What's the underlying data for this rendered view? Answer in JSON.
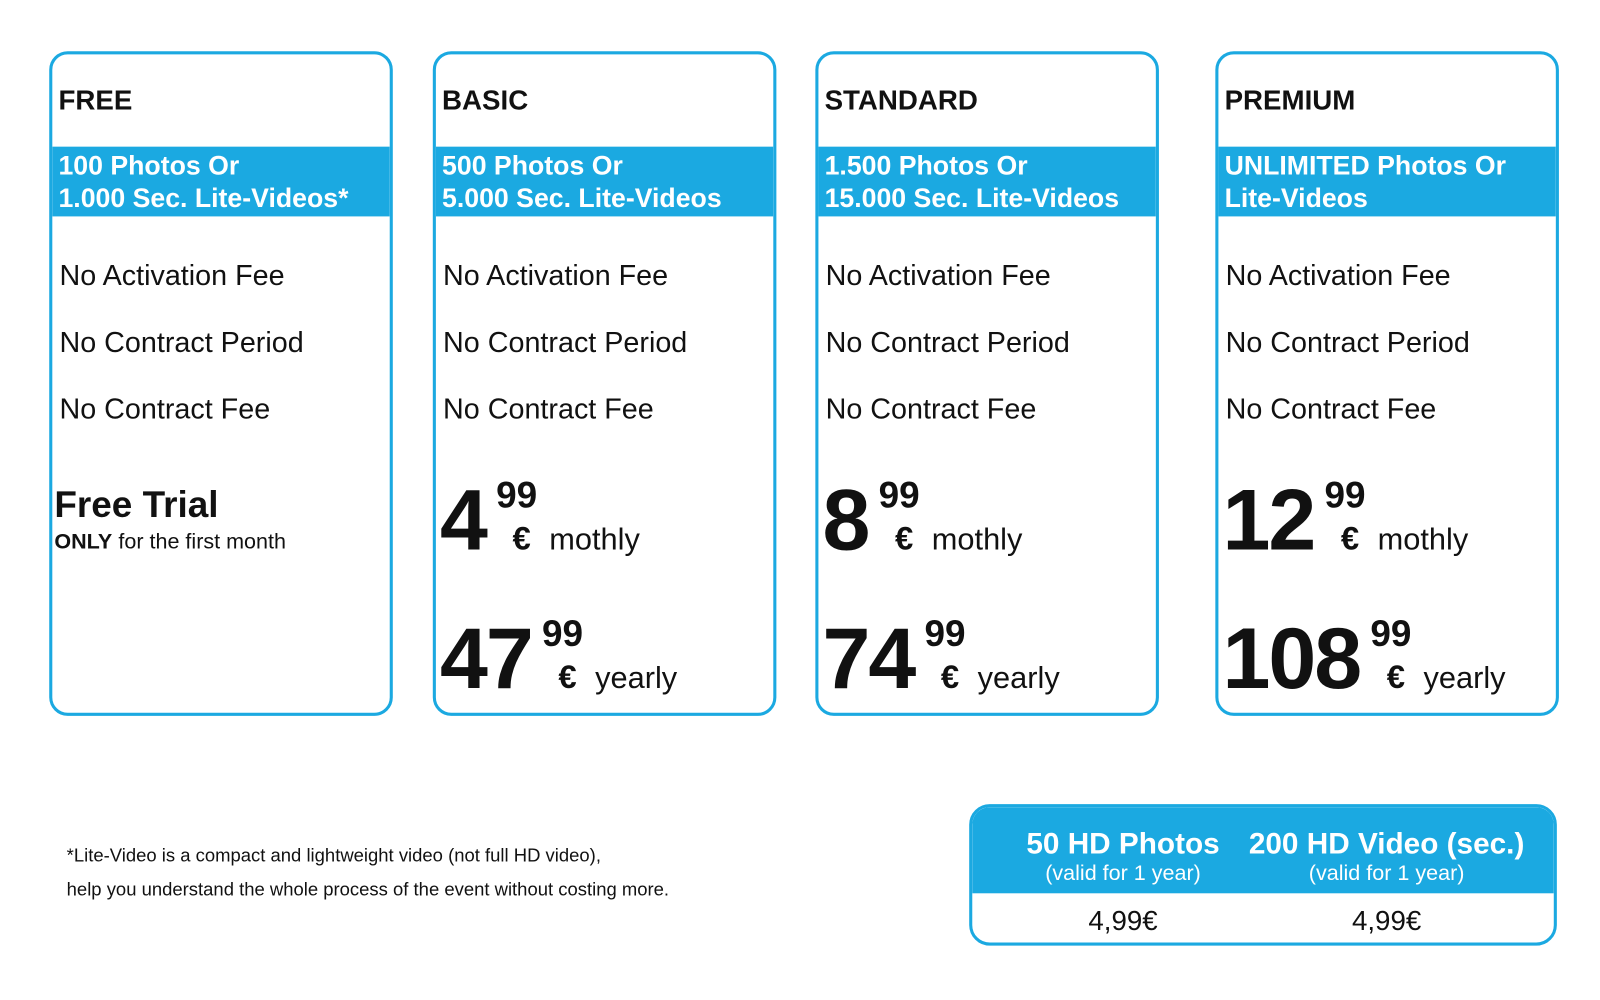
{
  "plans": [
    {
      "name": "FREE",
      "quota": [
        "100 Photos Or",
        "1.000 Sec. Lite-Videos*"
      ],
      "features": [
        "No Activation Fee",
        "No Contract Period",
        "No Contract Fee"
      ],
      "trial": {
        "title": "Free Trial",
        "emphasis": "ONLY",
        "note": "for the first month"
      }
    },
    {
      "name": "BASIC",
      "quota": [
        "500 Photos Or",
        "5.000 Sec. Lite-Videos"
      ],
      "features": [
        "No Activation Fee",
        "No Contract Period",
        "No Contract Fee"
      ],
      "prices": [
        {
          "main": "4",
          "cents": "99",
          "currency": "€",
          "period": "mothly"
        },
        {
          "main": "47",
          "cents": "99",
          "currency": "€",
          "period": "yearly"
        }
      ]
    },
    {
      "name": "STANDARD",
      "quota": [
        "1.500 Photos Or",
        "15.000 Sec. Lite-Videos"
      ],
      "features": [
        "No Activation Fee",
        "No Contract Period",
        "No Contract Fee"
      ],
      "prices": [
        {
          "main": "8",
          "cents": "99",
          "currency": "€",
          "period": "mothly"
        },
        {
          "main": "74",
          "cents": "99",
          "currency": "€",
          "period": "yearly"
        }
      ]
    },
    {
      "name": "PREMIUM",
      "quota": [
        "UNLIMITED Photos Or",
        "Lite-Videos"
      ],
      "features": [
        "No Activation Fee",
        "No Contract Period",
        "No Contract Fee"
      ],
      "prices": [
        {
          "main": "12",
          "cents": "99",
          "currency": "€",
          "period": "mothly"
        },
        {
          "main": "108",
          "cents": "99",
          "currency": "€",
          "period": "yearly"
        }
      ]
    }
  ],
  "footnote": [
    "*Lite-Video is a compact and lightweight video (not full HD video),",
    "help you understand the whole process of the event without costing more."
  ],
  "addons": [
    {
      "title": "50 HD Photos",
      "note": "(valid for 1 year)",
      "price": "4,99€"
    },
    {
      "title": "200 HD Video (sec.)",
      "note": "(valid for 1 year)",
      "price": "4,99€"
    }
  ]
}
